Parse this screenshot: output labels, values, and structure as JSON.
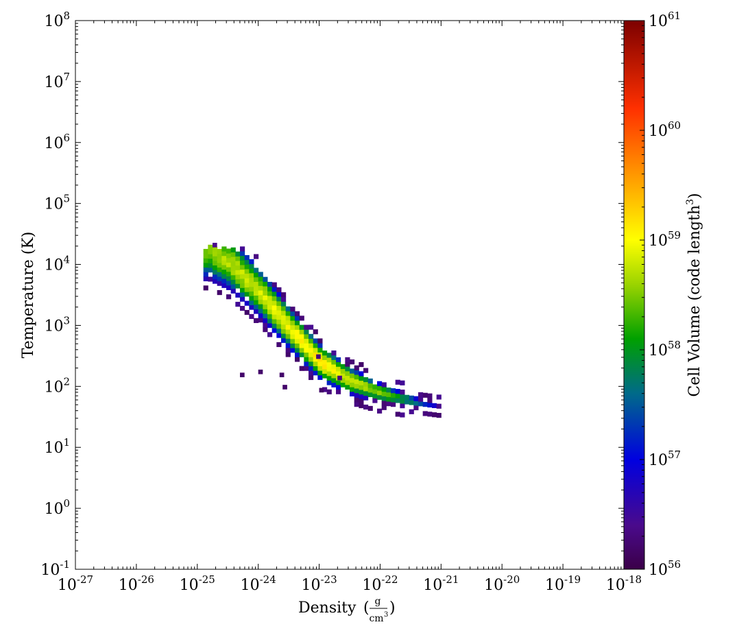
{
  "chart_data": {
    "type": "heatmap",
    "title": "",
    "xlabel": "Density",
    "xunit_num": "g",
    "xunit_den": "cm",
    "xunit_den_exp": "3",
    "ylabel": "Temperature  (K)",
    "colorbar_label": "Cell Volume  (code length",
    "colorbar_label_exp": "3",
    "colorbar_label_close": ")",
    "x_scale": "log",
    "y_scale": "log",
    "color_scale": "log",
    "colormap": "rainbow (purple-blue-green-yellow-red)",
    "xlim": [
      1e-27,
      1e-18
    ],
    "ylim": [
      0.1,
      100000000.0
    ],
    "clim": [
      1e+56,
      1e+61
    ],
    "x_tick_base": "10",
    "x_tick_exponents": [
      "-27",
      "-26",
      "-25",
      "-24",
      "-23",
      "-22",
      "-21",
      "-20",
      "-19",
      "-18"
    ],
    "y_tick_base": "10",
    "y_tick_exponents": [
      "-1",
      "0",
      "1",
      "2",
      "3",
      "4",
      "5",
      "6",
      "7",
      "8"
    ],
    "colorbar_tick_base": "10",
    "colorbar_tick_exponents": [
      "56",
      "57",
      "58",
      "59",
      "60",
      "61"
    ],
    "ridge": [
      {
        "log_density": -24.85,
        "log_temperature": 4.2,
        "log_volume": 58.5
      },
      {
        "log_density": -24.5,
        "log_temperature": 4.0,
        "log_volume": 58.7
      },
      {
        "log_density": -24.0,
        "log_temperature": 3.5,
        "log_volume": 58.8
      },
      {
        "log_density": -23.5,
        "log_temperature": 2.9,
        "log_volume": 59.0
      },
      {
        "log_density": -23.0,
        "log_temperature": 2.35,
        "log_volume": 59.1
      },
      {
        "log_density": -22.5,
        "log_temperature": 2.05,
        "log_volume": 58.8
      },
      {
        "log_density": -22.0,
        "log_temperature": 1.85,
        "log_volume": 58.5
      },
      {
        "log_density": -21.5,
        "log_temperature": 1.72,
        "log_volume": 57.8
      },
      {
        "log_density": -21.0,
        "log_temperature": 1.6,
        "log_volume": 56.6
      }
    ],
    "outliers": [
      {
        "log_density": -24.3,
        "log_temperature": 2.15,
        "log_volume": 56.2
      },
      {
        "log_density": -24.0,
        "log_temperature": 2.2,
        "log_volume": 56.2
      },
      {
        "log_density": -23.65,
        "log_temperature": 2.15,
        "log_volume": 56.2
      },
      {
        "log_density": -23.6,
        "log_temperature": 1.95,
        "log_volume": 56.2
      },
      {
        "log_density": -23.0,
        "log_temperature": 1.9,
        "log_volume": 56.2
      },
      {
        "log_density": -24.75,
        "log_temperature": 4.28,
        "log_volume": 56.4
      },
      {
        "log_density": -23.05,
        "log_temperature": 2.45,
        "log_volume": 56.3
      },
      {
        "log_density": -22.7,
        "log_temperature": 2.1,
        "log_volume": 56.3
      }
    ]
  }
}
